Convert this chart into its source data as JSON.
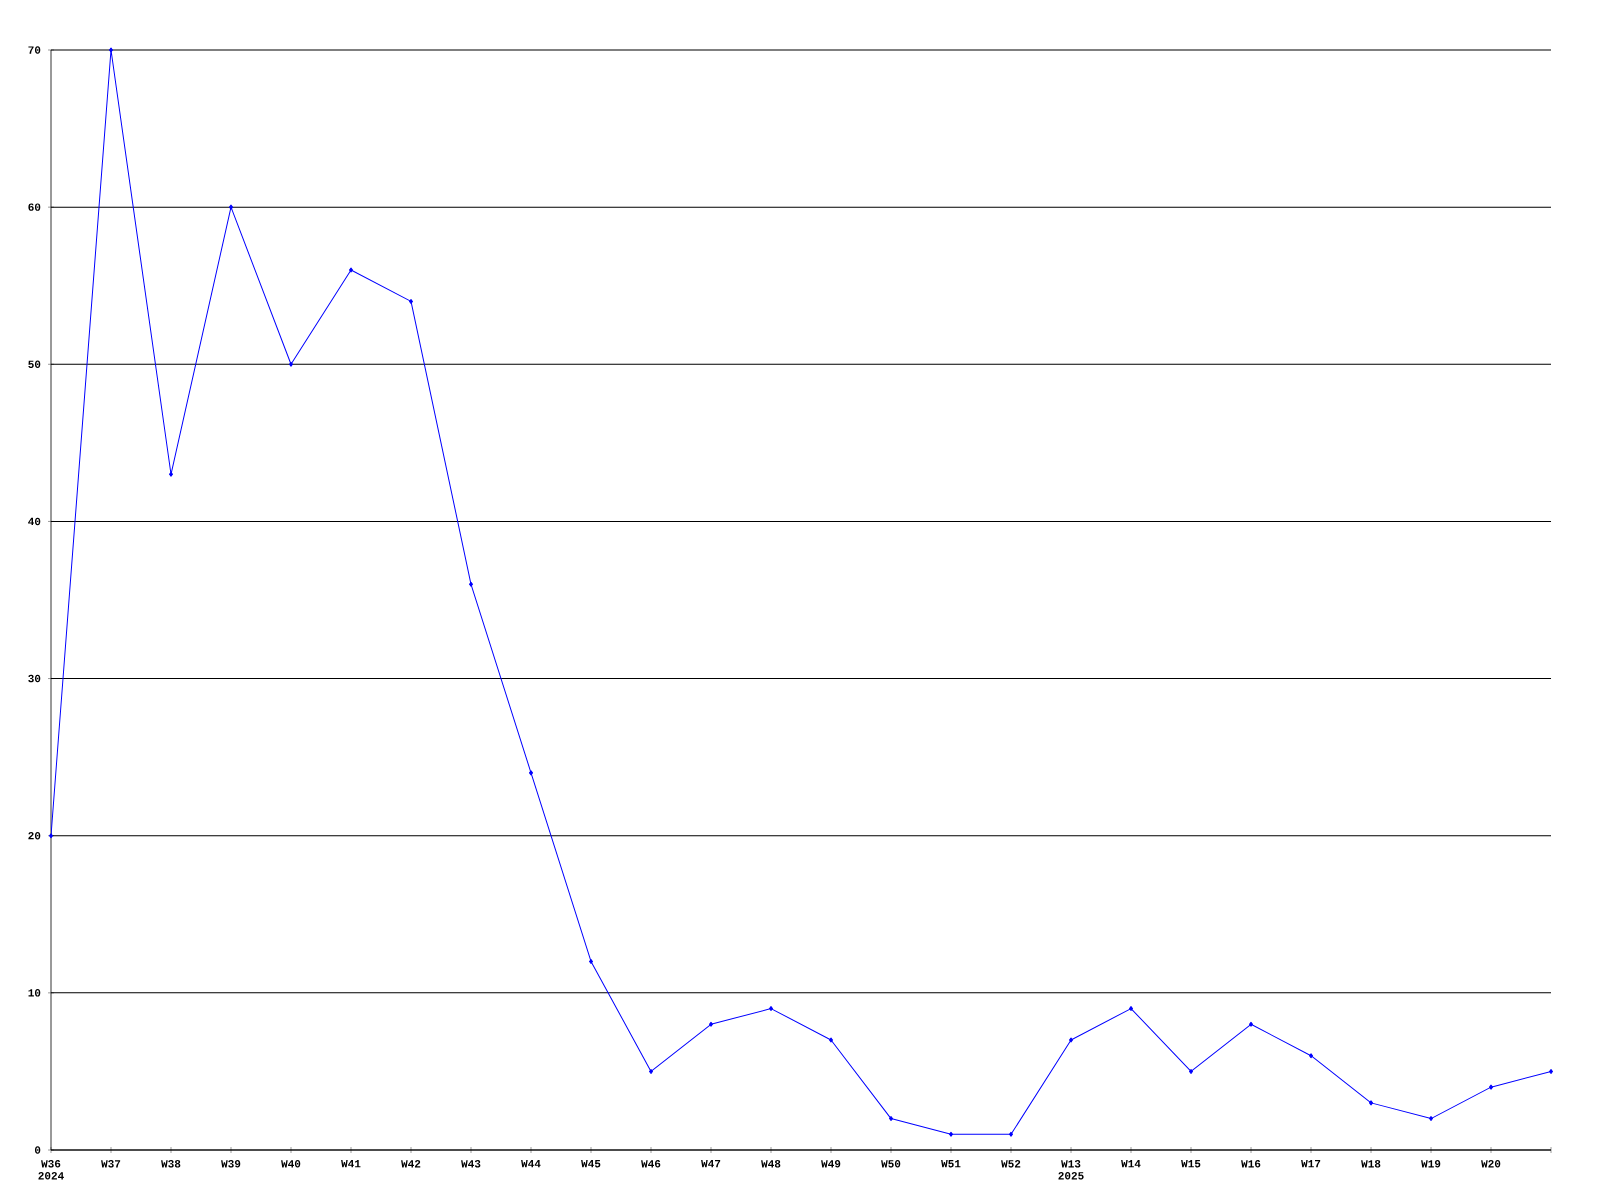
{
  "chart_data": {
    "type": "line",
    "categories": [
      "W36 2024",
      "W37",
      "W38",
      "W39",
      "W40",
      "W41",
      "W42",
      "W43",
      "W44",
      "W45",
      "W46",
      "W47",
      "W48",
      "W49",
      "W50",
      "W51",
      "W52",
      "W13 2025",
      "W14",
      "W15",
      "W16",
      "W17",
      "W18",
      "W19",
      "W20",
      null
    ],
    "values": [
      20,
      70,
      43,
      60,
      50,
      56,
      54,
      36,
      24,
      12,
      5,
      8,
      9,
      7,
      2,
      1,
      1,
      7,
      9,
      5,
      8,
      6,
      3,
      2,
      4,
      5
    ],
    "color": "#0000ff",
    "ylim": [
      0,
      70
    ],
    "yticks": [
      0,
      10,
      20,
      30,
      40,
      50,
      60,
      70
    ],
    "grid": "y",
    "marker": "diamond",
    "line_style": "solid"
  }
}
